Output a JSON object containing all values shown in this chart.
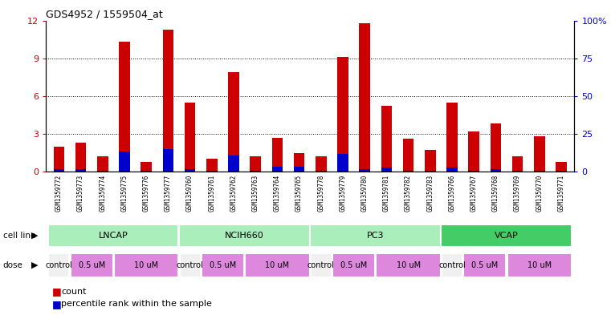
{
  "title": "GDS4952 / 1559504_at",
  "samples": [
    "GSM1359772",
    "GSM1359773",
    "GSM1359774",
    "GSM1359775",
    "GSM1359776",
    "GSM1359777",
    "GSM1359760",
    "GSM1359761",
    "GSM1359762",
    "GSM1359763",
    "GSM1359764",
    "GSM1359765",
    "GSM1359778",
    "GSM1359779",
    "GSM1359780",
    "GSM1359781",
    "GSM1359782",
    "GSM1359783",
    "GSM1359766",
    "GSM1359767",
    "GSM1359768",
    "GSM1359769",
    "GSM1359770",
    "GSM1359771"
  ],
  "count_values": [
    2.0,
    2.3,
    1.2,
    10.3,
    0.8,
    11.3,
    5.5,
    1.0,
    7.9,
    1.2,
    2.7,
    1.5,
    1.2,
    9.1,
    11.8,
    5.2,
    2.6,
    1.7,
    5.5,
    3.2,
    3.8,
    1.2,
    2.8,
    0.8
  ],
  "percentile_values": [
    0.2,
    0.2,
    0.1,
    1.6,
    0.1,
    1.8,
    0.2,
    0.1,
    1.3,
    0.1,
    0.4,
    0.4,
    0.1,
    1.4,
    0.2,
    0.3,
    0.1,
    0.1,
    0.3,
    0.1,
    0.2,
    0.1,
    0.1,
    0.1
  ],
  "cell_line_groups": [
    {
      "name": "LNCAP",
      "start": 0,
      "end": 6,
      "color": "#aaeebb"
    },
    {
      "name": "NCIH660",
      "start": 6,
      "end": 12,
      "color": "#aaeebb"
    },
    {
      "name": "PC3",
      "start": 12,
      "end": 18,
      "color": "#aaeebb"
    },
    {
      "name": "VCAP",
      "start": 18,
      "end": 24,
      "color": "#44cc66"
    }
  ],
  "dose_groups": [
    {
      "name": "control",
      "start": 0,
      "end": 1,
      "color": "#f0f0f0"
    },
    {
      "name": "0.5 uM",
      "start": 1,
      "end": 3,
      "color": "#dd88dd"
    },
    {
      "name": "10 uM",
      "start": 3,
      "end": 6,
      "color": "#dd88dd"
    },
    {
      "name": "control",
      "start": 6,
      "end": 7,
      "color": "#f0f0f0"
    },
    {
      "name": "0.5 uM",
      "start": 7,
      "end": 9,
      "color": "#dd88dd"
    },
    {
      "name": "10 uM",
      "start": 9,
      "end": 12,
      "color": "#dd88dd"
    },
    {
      "name": "control",
      "start": 12,
      "end": 13,
      "color": "#f0f0f0"
    },
    {
      "name": "0.5 uM",
      "start": 13,
      "end": 15,
      "color": "#dd88dd"
    },
    {
      "name": "10 uM",
      "start": 15,
      "end": 18,
      "color": "#dd88dd"
    },
    {
      "name": "control",
      "start": 18,
      "end": 19,
      "color": "#f0f0f0"
    },
    {
      "name": "0.5 uM",
      "start": 19,
      "end": 21,
      "color": "#dd88dd"
    },
    {
      "name": "10 uM",
      "start": 21,
      "end": 24,
      "color": "#dd88dd"
    }
  ],
  "ylim_left": [
    0,
    12
  ],
  "ylim_right": [
    0,
    100
  ],
  "yticks_left": [
    0,
    3,
    6,
    9,
    12
  ],
  "yticks_right": [
    0,
    25,
    50,
    75,
    100
  ],
  "bar_color": "#cc0000",
  "percentile_color": "#0000cc",
  "bg_color": "#ffffff",
  "tick_bg_color": "#dddddd",
  "bar_width": 0.5,
  "xlim": [
    -0.6,
    23.6
  ]
}
